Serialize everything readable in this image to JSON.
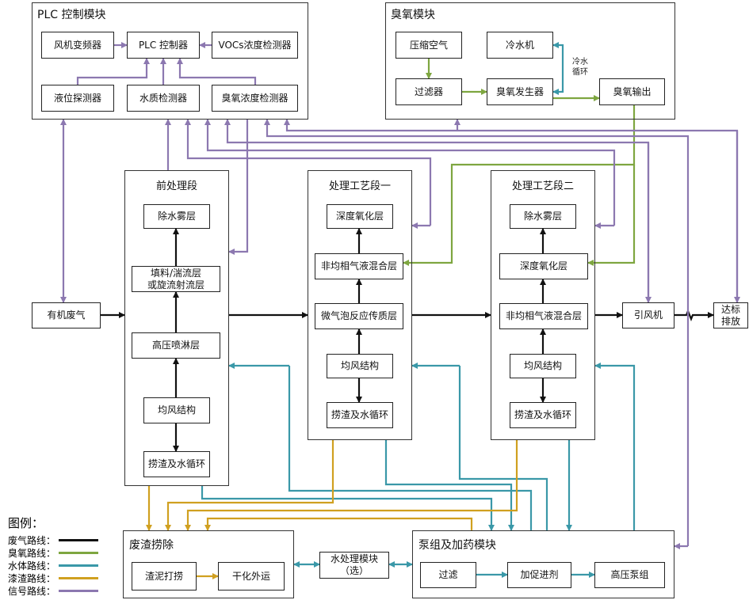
{
  "modules": {
    "plc": "PLC 控制模块",
    "ozone": "臭氧模块",
    "pre": "前处理段",
    "s1": "处理工艺段一",
    "s2": "处理工艺段二",
    "slag": "废渣捞除",
    "pump": "泵组及加药模块"
  },
  "boxes": {
    "fan_vfd": "风机变频器",
    "plc_ctrl": "PLC 控制器",
    "vocs": "VOCs浓度检测器",
    "level": "液位探测器",
    "water_q": "水质检测器",
    "o3_det": "臭氧浓度检测器",
    "air": "压缩空气",
    "chiller": "冷水机",
    "filter": "过滤器",
    "o3_gen": "臭氧发生器",
    "o3_out": "臭氧输出",
    "pre_demist": "除水雾层",
    "pre_pack": "填料/湍流层\n或旋流射流层",
    "pre_spray": "高压喷淋层",
    "pre_wind": "均风结构",
    "pre_slag": "捞渣及水循环",
    "s1_deep": "深度氧化层",
    "s1_mix": "非均相气液混合层",
    "s1_micro": "微气泡反应传质层",
    "s1_wind": "均风结构",
    "s1_slag": "捞渣及水循环",
    "s2_demist": "除水雾层",
    "s2_deep": "深度氧化层",
    "s2_mix": "非均相气液混合层",
    "s2_wind": "均风结构",
    "s2_slag": "捞渣及水循环",
    "gas_in": "有机废气",
    "fan": "引风机",
    "emit": "达标\n排放",
    "sludge": "渣泥打捞",
    "dry": "干化外运",
    "wtm": "水处理模块\n（选）",
    "pf": "过滤",
    "accel": "加促进剂",
    "hpp": "高压泵组"
  },
  "chiller_loop_label": "冷水\n循环",
  "legend": {
    "title": "图例：",
    "items": [
      {
        "label": "废气路线：",
        "color": "#111111"
      },
      {
        "label": "臭氧路线：",
        "color": "#7ea640"
      },
      {
        "label": "水体路线：",
        "color": "#3a98a8"
      },
      {
        "label": "漆渣路线：",
        "color": "#d0a020"
      },
      {
        "label": "信号路线：",
        "color": "#8c78b0"
      }
    ]
  }
}
